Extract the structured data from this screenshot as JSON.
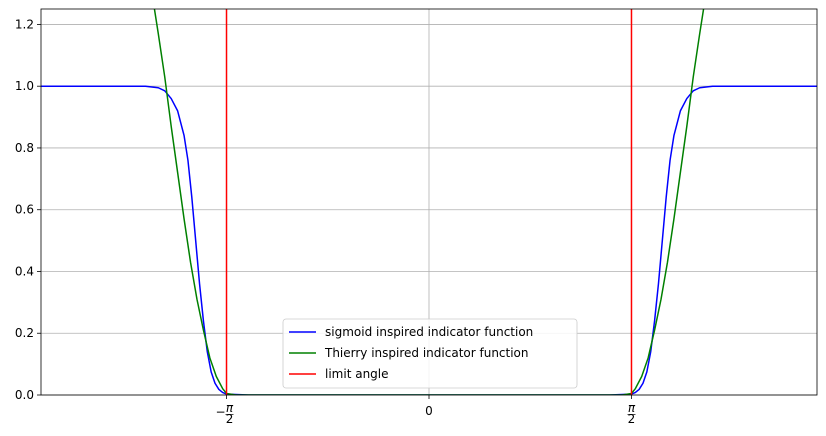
{
  "chart_data": {
    "type": "line",
    "title": "",
    "xlabel": "",
    "ylabel": "",
    "xlim": [
      -3.01,
      3.01
    ],
    "ylim": [
      0,
      1.25
    ],
    "grid": true,
    "legend_position": "bottom-center",
    "x_ticks": [
      {
        "value": -1.5708,
        "label": "-π/2"
      },
      {
        "value": 0,
        "label": "0"
      },
      {
        "value": 1.5708,
        "label": "π/2"
      }
    ],
    "y_ticks": [
      {
        "value": 0.0,
        "label": "0.0"
      },
      {
        "value": 0.2,
        "label": "0.2"
      },
      {
        "value": 0.4,
        "label": "0.4"
      },
      {
        "value": 0.6,
        "label": "0.6"
      },
      {
        "value": 0.8,
        "label": "0.8"
      },
      {
        "value": 1.0,
        "label": "1.0"
      },
      {
        "value": 1.2,
        "label": "1.2"
      }
    ],
    "series": [
      {
        "name": "sigmoid inspired indicator function",
        "color": "#0000ff",
        "x": [
          -3.01,
          -2.6,
          -2.2,
          -2.1,
          -2.05,
          -2.0,
          -1.95,
          -1.9,
          -1.87,
          -1.84,
          -1.81,
          -1.78,
          -1.75,
          -1.72,
          -1.69,
          -1.66,
          -1.63,
          -1.6,
          -1.57,
          -1.4,
          0,
          1.4,
          1.57,
          1.6,
          1.63,
          1.66,
          1.69,
          1.72,
          1.75,
          1.78,
          1.81,
          1.84,
          1.87,
          1.9,
          1.95,
          2.0,
          2.05,
          2.1,
          2.2,
          2.6,
          3.01
        ],
        "y": [
          1.0,
          1.0,
          1.0,
          0.995,
          0.985,
          0.96,
          0.92,
          0.84,
          0.76,
          0.64,
          0.5,
          0.36,
          0.24,
          0.14,
          0.075,
          0.038,
          0.018,
          0.008,
          0.003,
          0.0,
          0.0,
          0.0,
          0.003,
          0.008,
          0.018,
          0.038,
          0.075,
          0.14,
          0.24,
          0.36,
          0.5,
          0.64,
          0.76,
          0.84,
          0.92,
          0.96,
          0.985,
          0.995,
          1.0,
          1.0,
          1.0
        ]
      },
      {
        "name": "Thierry inspired indicator function",
        "color": "#008000",
        "x": [
          -2.13,
          -2.1,
          -2.05,
          -2.0,
          -1.95,
          -1.9,
          -1.85,
          -1.8,
          -1.75,
          -1.7,
          -1.65,
          -1.6,
          -1.57,
          -1.5,
          0,
          1.5,
          1.57,
          1.6,
          1.65,
          1.7,
          1.75,
          1.8,
          1.85,
          1.9,
          1.95,
          2.0,
          2.05,
          2.1,
          2.13
        ],
        "y": [
          1.25,
          1.17,
          1.03,
          0.87,
          0.72,
          0.57,
          0.43,
          0.31,
          0.21,
          0.12,
          0.06,
          0.02,
          0.005,
          0.0,
          0.0,
          0.0,
          0.005,
          0.02,
          0.06,
          0.12,
          0.21,
          0.31,
          0.43,
          0.57,
          0.72,
          0.87,
          1.03,
          1.17,
          1.25
        ]
      },
      {
        "name": "limit angle",
        "color": "#ff0000",
        "segments": [
          {
            "x": [
              -1.5708,
              -1.5708
            ],
            "y": [
              0,
              1.25
            ]
          },
          {
            "x": [
              1.5708,
              1.5708
            ],
            "y": [
              0,
              1.25
            ]
          }
        ]
      }
    ]
  }
}
